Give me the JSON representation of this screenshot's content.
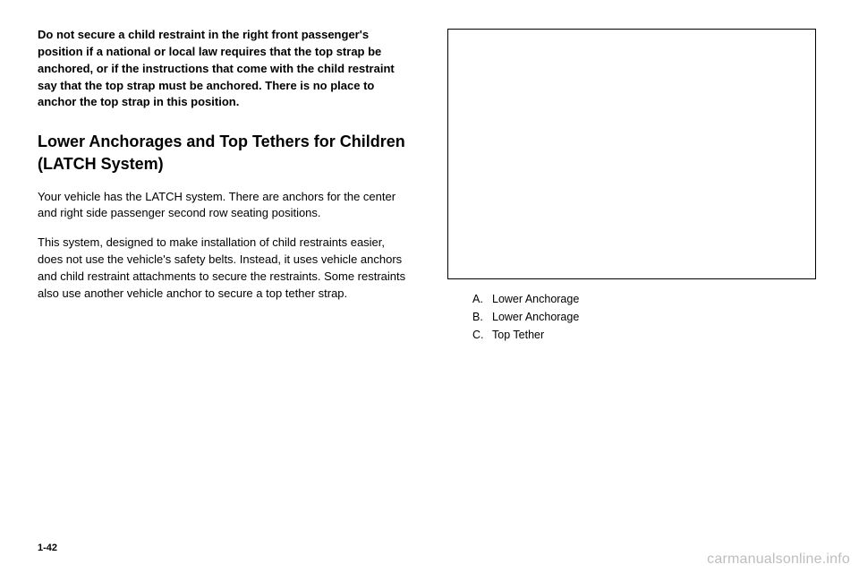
{
  "left": {
    "boldNotice": "Do not secure a child restraint in the right front passenger's position if a national or local law requires that the top strap be anchored, or if the instructions that come with the child restraint say that the top strap must be anchored. There is no place to anchor the top strap in this position.",
    "heading": "Lower Anchorages and Top Tethers for Children (LATCH System)",
    "para1": "Your vehicle has the LATCH system. There are anchors for the center and right side passenger second row seating positions.",
    "para2": "This system, designed to make installation of child restraints easier, does not use the vehicle's safety belts. Instead, it uses vehicle anchors and child restraint attachments to secure the restraints. Some restraints also use another vehicle anchor to secure a top tether strap."
  },
  "right": {
    "legend": {
      "a": {
        "letter": "A.",
        "label": "Lower Anchorage"
      },
      "b": {
        "letter": "B.",
        "label": "Lower Anchorage"
      },
      "c": {
        "letter": "C.",
        "label": "Top Tether"
      }
    }
  },
  "pageNumber": "1-42",
  "watermark": "carmanualsonline.info",
  "colors": {
    "text": "#000000",
    "background": "#ffffff",
    "watermark": "#bdbdbd",
    "border": "#000000"
  }
}
